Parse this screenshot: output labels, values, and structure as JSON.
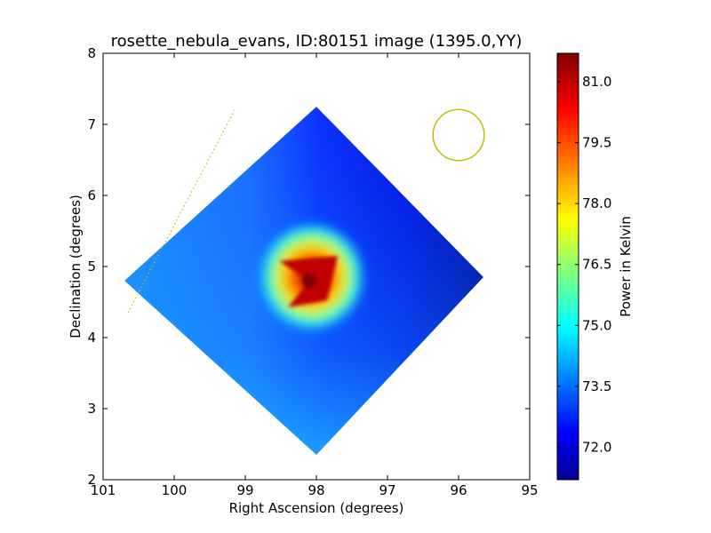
{
  "chart_data": {
    "type": "heatmap",
    "title": "rosette_nebula_evans, ID:80151 image (1395.0,YY)",
    "xlabel": "Right Ascension (degrees)",
    "ylabel": "Declination (degrees)",
    "xlim": [
      101,
      95
    ],
    "ylim": [
      2,
      8
    ],
    "xticks": [
      "101",
      "100",
      "99",
      "98",
      "97",
      "96",
      "95"
    ],
    "yticks": [
      "2",
      "3",
      "4",
      "5",
      "6",
      "7",
      "8"
    ],
    "colorbar": {
      "label": "Power in Kelvin",
      "range": [
        71.2,
        81.7
      ],
      "ticks": [
        "72.0",
        "73.5",
        "75.0",
        "76.5",
        "78.0",
        "79.5",
        "81.0"
      ],
      "colormap": "jet"
    },
    "map_region": {
      "shape": "rotated square",
      "vertices_ra_dec": [
        [
          98.0,
          7.25
        ],
        [
          95.65,
          4.85
        ],
        [
          98.0,
          2.35
        ],
        [
          100.7,
          4.8
        ]
      ],
      "background_level_kelvin": 73.0,
      "east_side_level_kelvin": 71.6
    },
    "peak": {
      "ra": 98.1,
      "dec": 4.8,
      "value_kelvin": 81.7
    },
    "beam_circle": {
      "ra": 96.0,
      "dec": 6.85,
      "radius_deg": 0.36,
      "color": "#bfbf00"
    },
    "dotted_line": {
      "from": [
        100.65,
        4.35
      ],
      "to": [
        99.15,
        7.2
      ],
      "color": "#bfbf00"
    }
  }
}
